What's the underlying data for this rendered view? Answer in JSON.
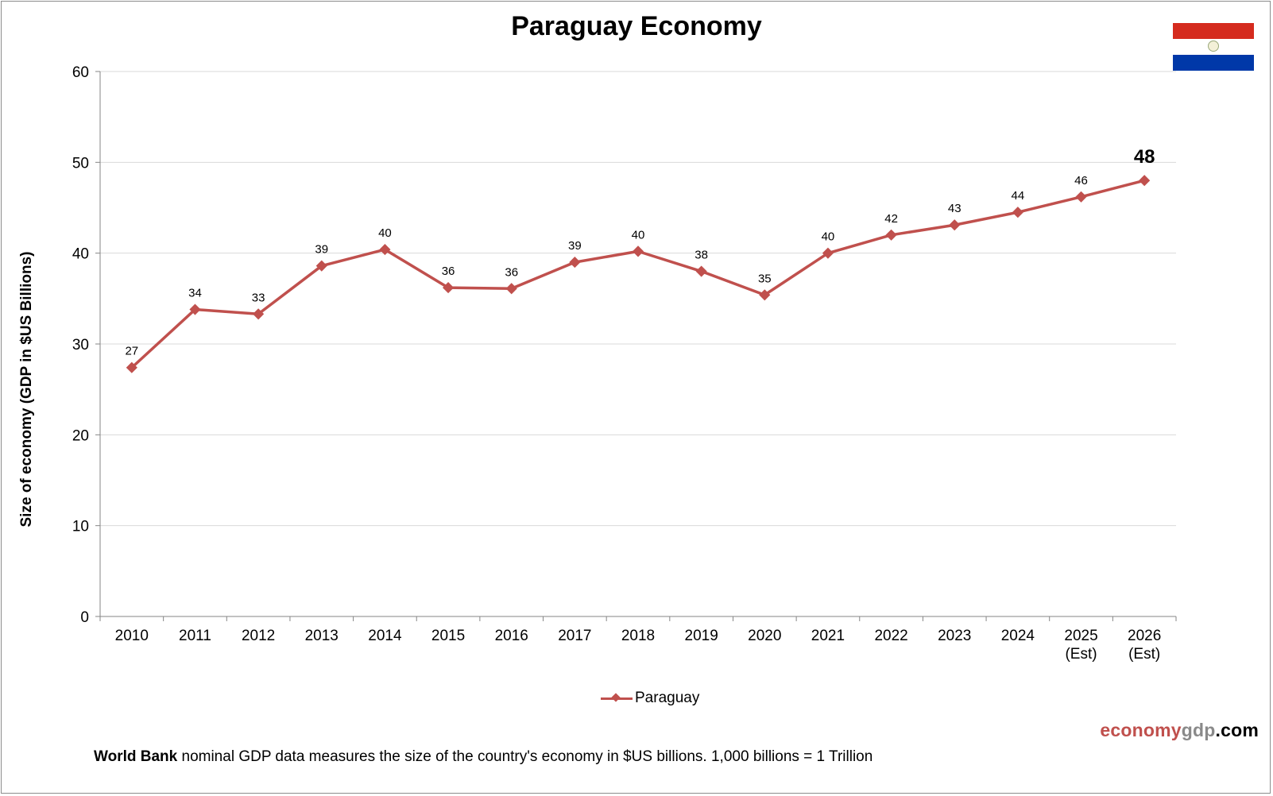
{
  "chart_data": {
    "type": "line",
    "title": "Paraguay Economy",
    "ylabel": "Size of economy (GDP in $US Billions)",
    "xlabel": "",
    "ylim": [
      0,
      60
    ],
    "yticks": [
      0,
      10,
      20,
      30,
      40,
      50,
      60
    ],
    "grid": true,
    "legend_position": "bottom",
    "categories": [
      [
        "2010"
      ],
      [
        "2011"
      ],
      [
        "2012"
      ],
      [
        "2013"
      ],
      [
        "2014"
      ],
      [
        "2015"
      ],
      [
        "2016"
      ],
      [
        "2017"
      ],
      [
        "2018"
      ],
      [
        "2019"
      ],
      [
        "2020"
      ],
      [
        "2021"
      ],
      [
        "2022"
      ],
      [
        "2023"
      ],
      [
        "2024"
      ],
      [
        "2025",
        "(Est)"
      ],
      [
        "2026",
        "(Est)"
      ]
    ],
    "series": [
      {
        "name": "Paraguay",
        "color": "#c0504d",
        "marker": "diamond",
        "values": [
          27.4,
          33.8,
          33.3,
          38.6,
          40.4,
          36.2,
          36.1,
          39.0,
          40.2,
          38.0,
          35.4,
          40.0,
          42.0,
          43.1,
          44.5,
          46.2,
          48.0
        ],
        "data_labels": [
          "27",
          "34",
          "33",
          "39",
          "40",
          "36",
          "36",
          "39",
          "40",
          "38",
          "35",
          "40",
          "42",
          "43",
          "44",
          "46",
          "48"
        ],
        "emphasized_label_index": 16
      }
    ]
  },
  "flag": {
    "colors": [
      "#d52b1e",
      "#ffffff",
      "#0038a8"
    ],
    "icon": "paraguay-flag-icon"
  },
  "brand": {
    "part1": "economy",
    "part2": "gdp",
    "part3": ".com"
  },
  "footnote": {
    "bold": "World Bank",
    "text": " nominal GDP data  measures the size of the country's economy in $US billions. 1,000 billions = 1 Trillion"
  }
}
